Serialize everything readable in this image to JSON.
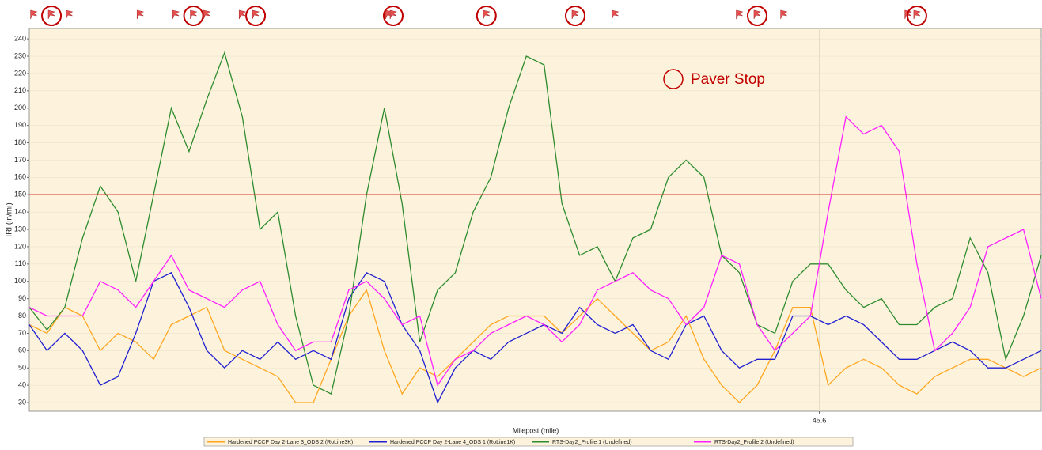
{
  "chart_data": {
    "type": "line",
    "y_label": "IRI (in/mi)",
    "x_label": "Milepost (mile)",
    "annotation": "Paver Stop",
    "annotation_color": "#c00000",
    "threshold": 150,
    "threshold_color": "#e03030",
    "paver_stops": [
      45.427,
      45.459,
      45.473,
      45.504,
      45.525,
      45.545,
      45.586,
      45.622
    ],
    "flags": [
      45.423,
      45.431,
      45.447,
      45.455,
      45.462,
      45.47,
      45.503,
      45.554,
      45.582,
      45.592,
      45.62
    ],
    "xlim": [
      45.422,
      45.65
    ],
    "xticks": [
      45.6
    ],
    "ylim": [
      25,
      246
    ],
    "yticks": [
      30,
      40,
      50,
      60,
      70,
      80,
      90,
      100,
      110,
      120,
      130,
      140,
      150,
      160,
      170,
      180,
      190,
      200,
      210,
      220,
      230,
      240
    ],
    "grid": true,
    "legend": "bottom",
    "x": [
      45.422,
      45.426,
      45.43,
      45.434,
      45.438,
      45.442,
      45.446,
      45.45,
      45.454,
      45.458,
      45.462,
      45.466,
      45.47,
      45.474,
      45.478,
      45.482,
      45.486,
      45.49,
      45.494,
      45.498,
      45.502,
      45.506,
      45.51,
      45.514,
      45.518,
      45.522,
      45.526,
      45.53,
      45.534,
      45.538,
      45.542,
      45.546,
      45.55,
      45.554,
      45.558,
      45.562,
      45.566,
      45.57,
      45.574,
      45.578,
      45.582,
      45.586,
      45.59,
      45.594,
      45.598,
      45.602,
      45.606,
      45.61,
      45.614,
      45.618,
      45.622,
      45.626,
      45.63,
      45.634,
      45.638,
      45.642,
      45.646,
      45.65
    ],
    "series": [
      {
        "name": "Hardened PCCP Day 2-Lane 3_ODS 2 (RoLine3K)",
        "color": "#ffa621",
        "values": [
          75,
          70,
          85,
          80,
          60,
          70,
          65,
          55,
          75,
          80,
          85,
          60,
          55,
          50,
          45,
          30,
          30,
          55,
          80,
          95,
          60,
          35,
          50,
          45,
          55,
          65,
          75,
          80,
          80,
          80,
          70,
          80,
          90,
          80,
          70,
          60,
          65,
          80,
          55,
          40,
          30,
          40,
          60,
          85,
          85,
          40,
          50,
          55,
          50,
          40,
          35,
          45,
          50,
          55,
          55,
          50,
          45,
          50
        ]
      },
      {
        "name": "Hardened PCCP Day 2-Lane 4_ODS 1 (RoLine1K)",
        "color": "#2020d0",
        "values": [
          75,
          60,
          70,
          60,
          40,
          45,
          70,
          100,
          105,
          85,
          60,
          50,
          60,
          55,
          65,
          55,
          60,
          55,
          90,
          105,
          100,
          75,
          60,
          30,
          50,
          60,
          55,
          65,
          70,
          75,
          70,
          85,
          75,
          70,
          75,
          60,
          55,
          75,
          80,
          60,
          50,
          55,
          55,
          80,
          80,
          75,
          80,
          75,
          65,
          55,
          55,
          60,
          65,
          60,
          50,
          50,
          55,
          60
        ]
      },
      {
        "name": "RTS-Day2_Profile 1 (Undefined)",
        "color": "#2e8b2e",
        "values": [
          85,
          72,
          85,
          125,
          155,
          140,
          100,
          150,
          200,
          175,
          205,
          232,
          195,
          130,
          140,
          80,
          40,
          35,
          80,
          150,
          200,
          145,
          65,
          95,
          105,
          140,
          160,
          200,
          230,
          225,
          145,
          115,
          120,
          100,
          125,
          130,
          160,
          170,
          160,
          115,
          105,
          75,
          70,
          100,
          110,
          110,
          95,
          85,
          90,
          75,
          75,
          85,
          90,
          125,
          105,
          55,
          80,
          115
        ]
      },
      {
        "name": "RTS-Day2_Profile 2 (Undefined)",
        "color": "#ff20ff",
        "values": [
          85,
          80,
          80,
          80,
          100,
          95,
          85,
          100,
          115,
          95,
          90,
          85,
          95,
          100,
          75,
          60,
          65,
          65,
          95,
          100,
          90,
          75,
          80,
          40,
          55,
          60,
          70,
          75,
          80,
          75,
          65,
          75,
          95,
          100,
          105,
          95,
          90,
          75,
          85,
          115,
          110,
          75,
          60,
          70,
          80,
          140,
          195,
          185,
          190,
          175,
          110,
          60,
          70,
          85,
          120,
          125,
          130,
          90
        ]
      }
    ]
  }
}
